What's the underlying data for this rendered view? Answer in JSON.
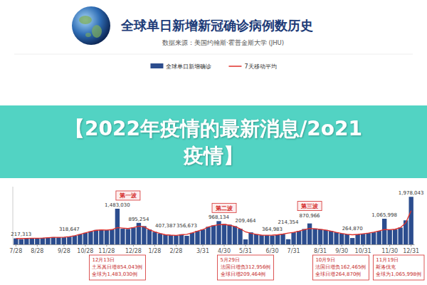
{
  "banner": {
    "text": "【2022年疫情的最新消息/2o21疫情】"
  },
  "chart_data": {
    "type": "bar",
    "title": "全球单日新增新冠确诊病例数历史",
    "subtitle": "数据来源：美国约翰斯·霍普金斯大学 (JHU)",
    "categories": [
      "7/28",
      null,
      null,
      null,
      "8/28",
      null,
      null,
      null,
      null,
      "9/28",
      null,
      null,
      null,
      "10/28",
      null,
      null,
      null,
      "11/28",
      null,
      null,
      null,
      null,
      "12/28",
      null,
      null,
      null,
      "1/28",
      null,
      null,
      null,
      "2/28",
      null,
      null,
      null,
      null,
      "3/31",
      null,
      null,
      null,
      "4/30",
      null,
      null,
      null,
      "5/31",
      null,
      null,
      null,
      null,
      "6/30",
      null,
      null,
      null,
      "7/31",
      null,
      null,
      null,
      null,
      "8/31",
      null,
      null,
      null,
      "9/30",
      null,
      null,
      null,
      "10/31",
      null,
      null,
      null,
      null,
      "11/30",
      null,
      null,
      null,
      "12/31"
    ],
    "series": [
      {
        "name": "全球单日新增确诊",
        "type": "bar",
        "color": "#2c4d8e",
        "values": [
          250000,
          217313,
          265000,
          260000,
          255000,
          270000,
          280000,
          300000,
          295000,
          290000,
          318647,
          360000,
          420000,
          480000,
          540000,
          600000,
          610000,
          590000,
          620000,
          1483030,
          650000,
          640000,
          700000,
          895254,
          760000,
          620000,
          520000,
          450000,
          407387,
          380000,
          370000,
          420000,
          356673,
          480000,
          560000,
          620000,
          730000,
          790000,
          968134,
          850000,
          820000,
          760000,
          650000,
          209464,
          500000,
          420000,
          380000,
          380000,
          364983,
          400000,
          420000,
          214354,
          500000,
          560000,
          640000,
          870966,
          660000,
          630000,
          600000,
          560000,
          500000,
          450000,
          420000,
          264870,
          420000,
          440000,
          470000,
          500000,
          560000,
          1065998,
          600000,
          620000,
          700000,
          1000000,
          1978043
        ],
        "value_labels": [
          null,
          "217,313",
          null,
          null,
          null,
          null,
          null,
          null,
          null,
          null,
          "318,647",
          null,
          null,
          null,
          null,
          null,
          null,
          null,
          null,
          "1,483,030",
          null,
          null,
          null,
          "895,254",
          null,
          null,
          null,
          null,
          "407,387",
          null,
          null,
          null,
          "356,673",
          null,
          null,
          null,
          null,
          null,
          "968,134",
          null,
          null,
          null,
          null,
          "209,464",
          null,
          null,
          null,
          null,
          "364,983",
          null,
          null,
          "214,354",
          null,
          null,
          null,
          "870,966",
          null,
          null,
          null,
          null,
          null,
          null,
          null,
          "264,870",
          null,
          null,
          null,
          null,
          null,
          "1,065,998",
          null,
          null,
          null,
          null,
          "1,978,043"
        ]
      },
      {
        "name": "7天移动平均",
        "type": "line",
        "color": "#e0302a",
        "values": [
          240000,
          245000,
          250000,
          255000,
          258000,
          265000,
          278000,
          290000,
          295000,
          300000,
          320000,
          360000,
          415000,
          475000,
          535000,
          585000,
          600000,
          595000,
          615000,
          700000,
          680000,
          660000,
          700000,
          760000,
          730000,
          610000,
          520000,
          455000,
          400000,
          385000,
          375000,
          400000,
          420000,
          475000,
          550000,
          615000,
          720000,
          780000,
          820000,
          830000,
          800000,
          745000,
          650000,
          520000,
          460000,
          420000,
          385000,
          380000,
          385000,
          400000,
          430000,
          470000,
          500000,
          550000,
          610000,
          660000,
          650000,
          625000,
          595000,
          555000,
          500000,
          455000,
          420000,
          400000,
          415000,
          440000,
          470000,
          505000,
          560000,
          620000,
          610000,
          630000,
          700000,
          900000,
          1400000
        ]
      }
    ],
    "ylim": [
      0,
      2400000
    ],
    "tick_labels": "x",
    "data_labels": true,
    "legend": "top",
    "waves": [
      {
        "text": "第一波",
        "category": 21
      },
      {
        "text": "第二波",
        "category": 39
      },
      {
        "text": "第三波",
        "category": 55
      }
    ],
    "annotations": [
      {
        "category": 19,
        "lines": [
          "12月13日",
          "土耳其日增854,043例",
          "全球为1,483,030例"
        ]
      },
      {
        "category": 43,
        "lines": [
          "5月29日",
          "法国日增负312,956例",
          "全球日增209,464例"
        ]
      },
      {
        "category": 63,
        "lines": [
          "10月9日",
          "法国日增负162,465例",
          "全球日增264,870例"
        ]
      },
      {
        "category": 69,
        "lines": [
          "11月19日",
          "斯洛伐克",
          "全球为1,065,998例"
        ]
      }
    ]
  }
}
